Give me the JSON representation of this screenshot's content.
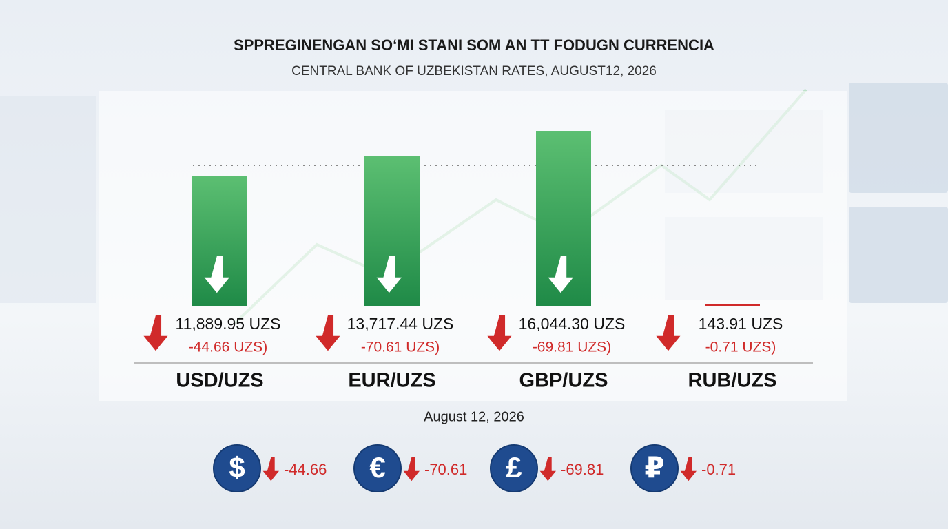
{
  "chart_data": {
    "type": "bar",
    "title": "SPPREGINENGAN SO‘MI STANI SOM AN TT FODUGN CURRENCIA",
    "subtitle": "CENTRAL BANK OF UZBEKISTAN RATES, AUGUST12, 2026",
    "categories": [
      "USD/UZS",
      "EUR/UZS",
      "GBP/UZS",
      "RUB/UZS"
    ],
    "values": [
      11889.95,
      13717.44,
      16044.3,
      143.91
    ],
    "value_labels": [
      "11,889.95 UZS",
      "13,717.44 UZS",
      "16,044.30 UZS",
      "143.91 UZS"
    ],
    "changes": [
      -44.66,
      -70.61,
      -69.81,
      -0.71
    ],
    "change_labels": [
      "-44.66 UZS)",
      "-70.61 UZS)",
      "-69.81 UZS)",
      "-0.71 UZS)"
    ],
    "date": "August 12, 2026",
    "symbols": [
      "$",
      "€",
      "£",
      "₽"
    ],
    "color": "#3aa85a",
    "negative_color": "#d02a2a"
  }
}
